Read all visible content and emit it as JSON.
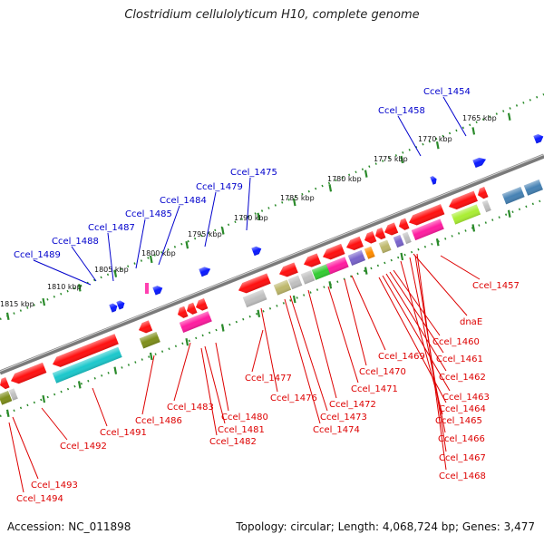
{
  "title": "Clostridium cellulolyticum H10, complete genome",
  "footer": {
    "accession": "Accession: NC_011898",
    "topology": "Topology: circular; Length: 4,068,724 bp; Genes: 3,477"
  },
  "ruler_ticks": [
    {
      "label": "1765 kbp"
    },
    {
      "label": "1770 kbp"
    },
    {
      "label": "1775 kbp"
    },
    {
      "label": "1780 kbp"
    },
    {
      "label": "1785 kbp"
    },
    {
      "label": "1790 kbp"
    },
    {
      "label": "1795 kbp"
    },
    {
      "label": "1800 kbp"
    },
    {
      "label": "1805 kbp"
    },
    {
      "label": "1810 kbp"
    },
    {
      "label": "1815 kbp"
    }
  ],
  "blue_labels": [
    "Ccel_1454",
    "Ccel_1458",
    "Ccel_1475",
    "Ccel_1479",
    "Ccel_1484",
    "Ccel_1485",
    "Ccel_1487",
    "Ccel_1488",
    "Ccel_1489"
  ],
  "red_labels": [
    "Ccel_1457",
    "dnaE",
    "Ccel_1460",
    "Ccel_1461",
    "Ccel_1462",
    "Ccel_1463",
    "Ccel_1464",
    "Ccel_1465",
    "Ccel_1466",
    "Ccel_1467",
    "Ccel_1468",
    "Ccel_1469",
    "Ccel_1470",
    "Ccel_1471",
    "Ccel_1472",
    "Ccel_1473",
    "Ccel_1474",
    "Ccel_1476",
    "Ccel_1477",
    "Ccel_1480",
    "Ccel_1481",
    "Ccel_1482",
    "Ccel_1483",
    "Ccel_1486",
    "Ccel_1491",
    "Ccel_1492",
    "Ccel_1493",
    "Ccel_1494"
  ],
  "colors": {
    "label_blue": "#0000cc",
    "label_red": "#dd0000",
    "backbone": "#7a7a7a",
    "ruler": "#2a8a2a",
    "forward_gene": "#0a1aff",
    "reverse_gene": "#ff1010",
    "cog_cyan": "#1cc8cc",
    "cog_olive": "#7f8f1c",
    "cog_pink": "#ff1ca0",
    "cog_grey": "#c0c0c0",
    "cog_khaki": "#bdb76b",
    "cog_green": "#33cc33",
    "cog_purple": "#7a64cc",
    "cog_orange": "#ff8c00",
    "cog_lime": "#aaee33",
    "cog_steel": "#4682b4"
  }
}
